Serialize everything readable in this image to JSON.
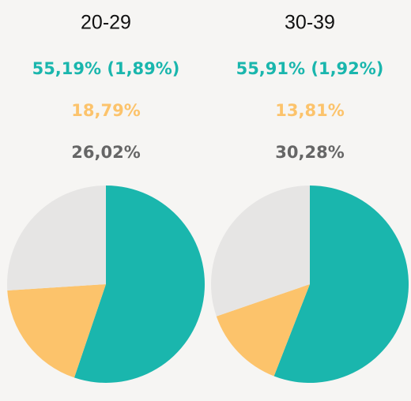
{
  "chart_data": [
    {
      "type": "pie",
      "title": "20-29",
      "values": [
        55.19,
        18.79,
        26.02
      ],
      "value_labels": [
        "55,19% (1,89%)",
        "18,79%",
        "26,02%"
      ],
      "errors": [
        1.89,
        null,
        null
      ],
      "colors": [
        "#1ab6ad",
        "#fcc36b",
        "#e6e5e4"
      ]
    },
    {
      "type": "pie",
      "title": "30-39",
      "values": [
        55.91,
        13.81,
        30.28
      ],
      "value_labels": [
        "55,91% (1,92%)",
        "13,81%",
        "30,28%"
      ],
      "errors": [
        1.92,
        null,
        null
      ],
      "colors": [
        "#1ab6ad",
        "#fcc36b",
        "#e6e5e4"
      ]
    }
  ]
}
